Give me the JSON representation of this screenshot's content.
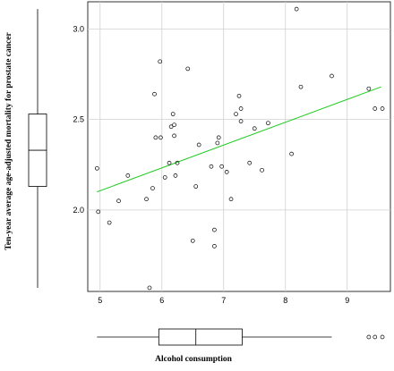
{
  "chart_data": {
    "type": "scatter",
    "xlabel": "Alcohol consumption",
    "ylabel": "Ten-year average age-adjusted mortality  for prostate cancer",
    "xlim": [
      4.8,
      9.7
    ],
    "ylim": [
      1.55,
      3.15
    ],
    "xticks": [
      "5",
      "6",
      "7",
      "8",
      "9"
    ],
    "xtick_values": [
      5,
      6,
      7,
      8,
      9
    ],
    "yticks": [
      "2.0",
      "2.5",
      "3.0"
    ],
    "ytick_values": [
      2.0,
      2.5,
      3.0
    ],
    "grid": true,
    "points": [
      [
        4.95,
        2.23
      ],
      [
        4.97,
        1.99
      ],
      [
        5.15,
        1.93
      ],
      [
        5.3,
        2.05
      ],
      [
        5.45,
        2.19
      ],
      [
        5.75,
        2.06
      ],
      [
        5.8,
        1.57
      ],
      [
        5.85,
        2.12
      ],
      [
        5.88,
        2.64
      ],
      [
        5.9,
        2.4
      ],
      [
        5.97,
        2.82
      ],
      [
        5.98,
        2.4
      ],
      [
        6.05,
        2.18
      ],
      [
        6.12,
        2.26
      ],
      [
        6.15,
        2.46
      ],
      [
        6.18,
        2.53
      ],
      [
        6.2,
        2.47
      ],
      [
        6.2,
        2.41
      ],
      [
        6.22,
        2.19
      ],
      [
        6.25,
        2.26
      ],
      [
        6.42,
        2.78
      ],
      [
        6.5,
        1.83
      ],
      [
        6.55,
        2.13
      ],
      [
        6.6,
        2.36
      ],
      [
        6.8,
        2.24
      ],
      [
        6.85,
        1.89
      ],
      [
        6.85,
        1.8
      ],
      [
        6.9,
        2.37
      ],
      [
        6.92,
        2.4
      ],
      [
        6.97,
        2.24
      ],
      [
        7.05,
        2.21
      ],
      [
        7.12,
        2.06
      ],
      [
        7.2,
        2.53
      ],
      [
        7.25,
        2.63
      ],
      [
        7.28,
        2.56
      ],
      [
        7.28,
        2.49
      ],
      [
        7.42,
        2.26
      ],
      [
        7.5,
        2.45
      ],
      [
        7.62,
        2.22
      ],
      [
        7.72,
        2.48
      ],
      [
        8.1,
        2.31
      ],
      [
        8.18,
        3.11
      ],
      [
        8.25,
        2.68
      ],
      [
        8.75,
        2.74
      ],
      [
        9.35,
        2.67
      ],
      [
        9.45,
        2.56
      ],
      [
        9.57,
        2.56
      ]
    ],
    "trend_line": {
      "x": [
        4.95,
        9.55
      ],
      "y": [
        2.1,
        2.68
      ],
      "color": "#22cc22"
    },
    "x_boxplot": {
      "whisker_low": 4.95,
      "q1": 5.95,
      "median": 6.55,
      "q3": 7.3,
      "whisker_high": 8.75,
      "outliers": [
        9.35,
        9.45,
        9.57
      ]
    },
    "y_boxplot": {
      "whisker_low": 1.57,
      "q1": 2.13,
      "median": 2.33,
      "q3": 2.53,
      "whisker_high": 3.11
    }
  }
}
